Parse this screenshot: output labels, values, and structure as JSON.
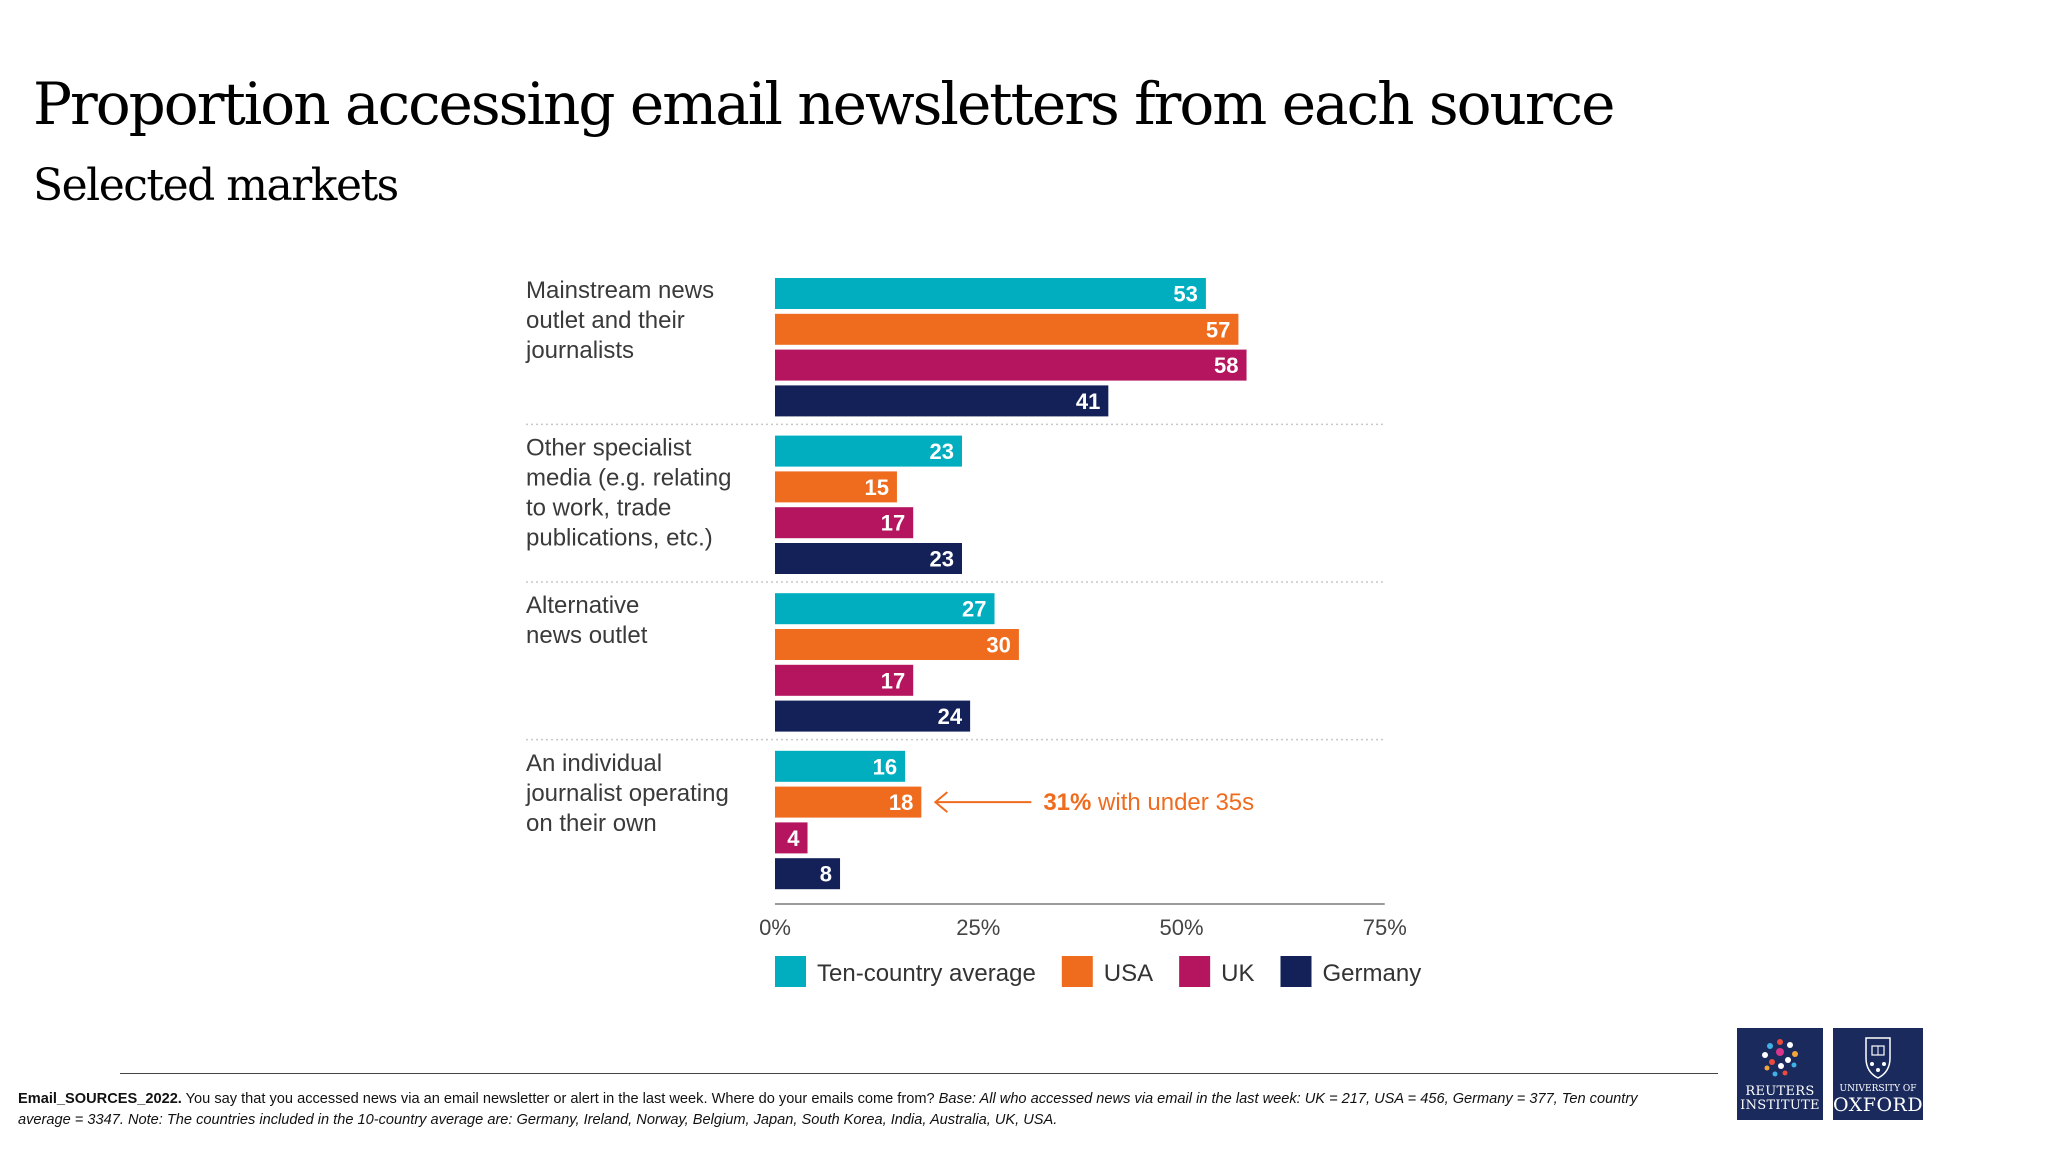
{
  "header": {
    "title": "Proportion accessing email newsletters from each source",
    "subtitle": "Selected markets"
  },
  "chart_data": {
    "type": "bar",
    "orientation": "horizontal",
    "categories": [
      [
        "Mainstream news",
        "outlet and their",
        "journalists"
      ],
      [
        "Other specialist",
        "media (e.g. relating",
        "to work, trade",
        "publications, etc.)"
      ],
      [
        "Alternative",
        "news outlet"
      ],
      [
        "An individual",
        "journalist operating",
        "on their own"
      ]
    ],
    "series": [
      {
        "name": "Ten-country average",
        "color": "#00aec0",
        "values": [
          53,
          23,
          27,
          16
        ]
      },
      {
        "name": "USA",
        "color": "#ef6c1e",
        "values": [
          57,
          15,
          30,
          18
        ]
      },
      {
        "name": "UK",
        "color": "#b5145f",
        "values": [
          58,
          17,
          17,
          4
        ]
      },
      {
        "name": "Germany",
        "color": "#132158",
        "values": [
          41,
          23,
          24,
          8
        ]
      }
    ],
    "xlim": [
      0,
      75
    ],
    "xticks": [
      "0%",
      "25%",
      "50%",
      "75%"
    ],
    "data_labels": true,
    "legend_position": "bottom",
    "annotation": {
      "category_index": 3,
      "series_index": 1,
      "highlight": "31%",
      "text": " with under 35s",
      "color": "#ef6c1e"
    }
  },
  "footnote": {
    "code": "Email_SOURCES_2022.",
    "question": " You say that you accessed news via an email newsletter or alert in the last week. Where do your emails come from? ",
    "base": "Base: All who accessed news via email in the last week: UK = 217, USA = 456, Germany = 377, Ten country average = 3347. Note: The countries included in the 10-country average are: Germany, Ireland, Norway, Belgium, Japan, South Korea, India, Australia, UK, USA."
  },
  "logos": {
    "reuters": {
      "line1": "REUTERS",
      "line2": "INSTITUTE"
    },
    "oxford": {
      "line1": "UNIVERSITY OF",
      "line2": "OXFORD"
    }
  }
}
